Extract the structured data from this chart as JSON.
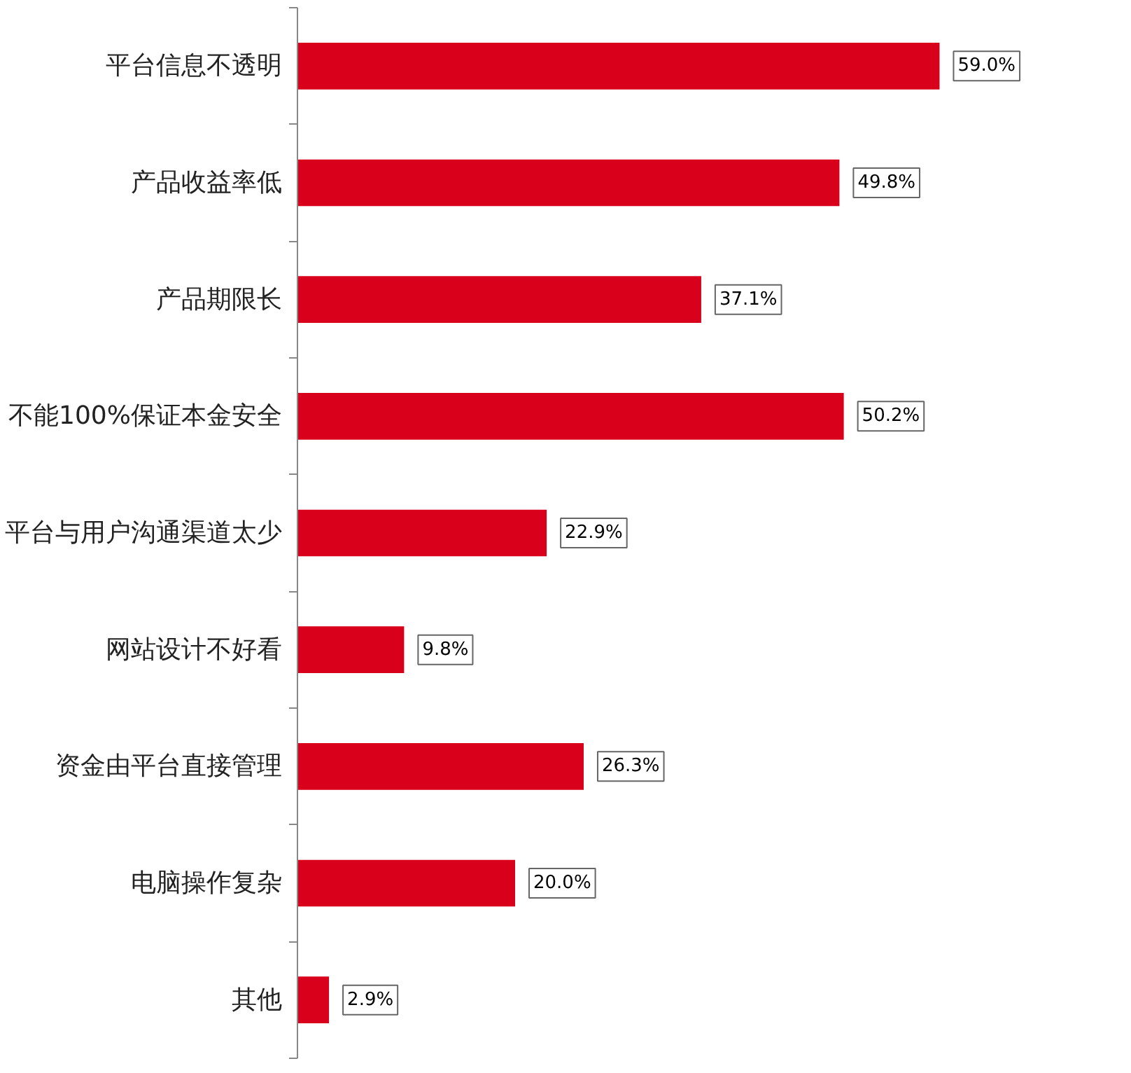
{
  "chart_data": {
    "type": "bar",
    "orientation": "horizontal",
    "categories": [
      "平台信息不透明",
      "产品收益率低",
      "产品期限长",
      "不能100%保证本金安全",
      "平台与用户沟通渠道太少",
      "网站设计不好看",
      "资金由平台直接管理",
      "电脑操作复杂",
      "其他"
    ],
    "values": [
      59.0,
      49.8,
      37.1,
      50.2,
      22.9,
      9.8,
      26.3,
      20.0,
      2.9
    ],
    "value_labels": [
      "59.0%",
      "49.8%",
      "37.1%",
      "50.2%",
      "22.9%",
      "9.8%",
      "26.3%",
      "20.0%",
      "2.9%"
    ],
    "color": "#d9001b",
    "grid": false,
    "tick_labels": "y"
  }
}
